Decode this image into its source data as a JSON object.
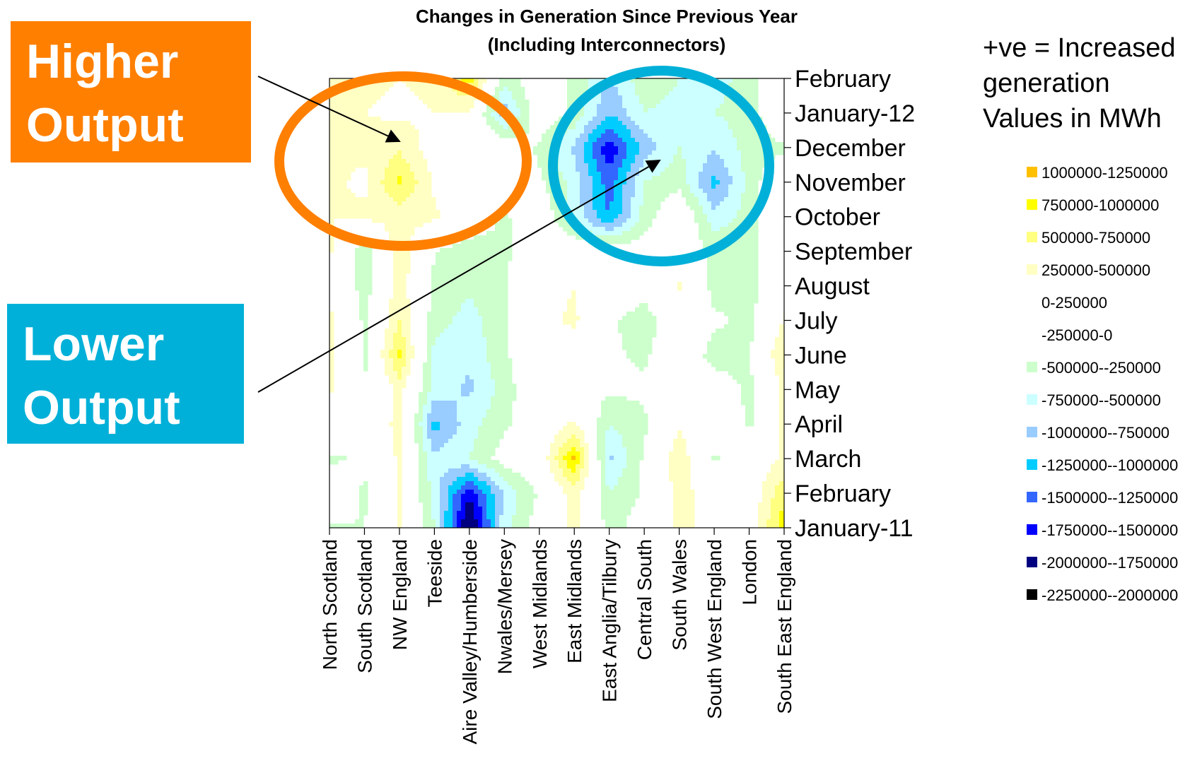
{
  "chart_data": {
    "type": "contour",
    "title": "Changes in Generation Since Previous Year",
    "subtitle": "(Including Interconnectors)",
    "x_categories": [
      "North Scotland",
      "South Scotland",
      "NW England",
      "Teeside",
      "Aire Valley/Humberside",
      "Nwales/Mersey",
      "West Midlands",
      "East Midlands",
      "East Anglia/Tilbury",
      "Central South",
      "South Wales",
      "South West England",
      "London",
      "South East England"
    ],
    "y_categories": [
      "January-11",
      "February",
      "March",
      "April",
      "May",
      "June",
      "July",
      "August",
      "September",
      "October",
      "November",
      "December",
      "January-12",
      "February"
    ],
    "grid": false,
    "legend_position": "right",
    "note_lines": [
      "+ve = Increased",
      "generation",
      "Values in MWh"
    ],
    "legend": [
      {
        "label": "1000000-1250000",
        "color": "#ffc000"
      },
      {
        "label": "750000-1000000",
        "color": "#ffff00"
      },
      {
        "label": "500000-750000",
        "color": "#ffff80"
      },
      {
        "label": "250000-500000",
        "color": "#ffffc4"
      },
      {
        "label": "0-250000",
        "color": "#ffffff"
      },
      {
        "label": "-250000-0",
        "color": "#ffffff"
      },
      {
        "label": "-500000--250000",
        "color": "#ccffcc"
      },
      {
        "label": "-750000--500000",
        "color": "#ccffff"
      },
      {
        "label": "-1000000--750000",
        "color": "#99ccff"
      },
      {
        "label": "-1250000--1000000",
        "color": "#00ccff"
      },
      {
        "label": "-1500000--1250000",
        "color": "#3366ff"
      },
      {
        "label": "-1750000--1500000",
        "color": "#0000ff"
      },
      {
        "label": "-2000000--1750000",
        "color": "#000080"
      },
      {
        "label": "-2250000--2000000",
        "color": "#000000"
      }
    ],
    "bands": [
      1000000,
      750000,
      500000,
      250000,
      0,
      -250000,
      -500000,
      -750000,
      -1000000,
      -1250000,
      -1500000,
      -1750000,
      -2000000,
      -2250000
    ],
    "values": [
      [
        -300000,
        -250000,
        300000,
        -500000,
        -2100000,
        -600000,
        -100000,
        350000,
        -350000,
        -100000,
        350000,
        100000,
        100000,
        900000
      ],
      [
        100000,
        -300000,
        250000,
        -600000,
        -1700000,
        -700000,
        -200000,
        400000,
        -500000,
        -200000,
        350000,
        100000,
        0,
        700000
      ],
      [
        -300000,
        -200000,
        300000,
        -700000,
        -500000,
        -100000,
        0,
        1050000,
        -800000,
        -200000,
        450000,
        -300000,
        0,
        300000
      ],
      [
        100000,
        -200000,
        400000,
        -1100000,
        -600000,
        -300000,
        0,
        300000,
        -500000,
        -300000,
        200000,
        100000,
        -300000,
        350000
      ],
      [
        300000,
        -250000,
        350000,
        -600000,
        -800000,
        -400000,
        100000,
        -200000,
        -200000,
        -200000,
        100000,
        -100000,
        -300000,
        300000
      ],
      [
        350000,
        -300000,
        800000,
        -600000,
        -700000,
        -300000,
        100000,
        100000,
        -200000,
        -300000,
        0,
        -350000,
        -300000,
        550000
      ],
      [
        300000,
        -300000,
        500000,
        -400000,
        -600000,
        -300000,
        150000,
        300000,
        -200000,
        -400000,
        0,
        -200000,
        -300000,
        250000
      ],
      [
        250000,
        -400000,
        400000,
        -300000,
        -450000,
        -300000,
        100000,
        250000,
        100000,
        -100000,
        300000,
        -350000,
        -400000,
        150000
      ],
      [
        300000,
        -500000,
        450000,
        -250000,
        -400000,
        -300000,
        0,
        0,
        0,
        -100000,
        0,
        -300000,
        -400000,
        100000
      ],
      [
        250000,
        300000,
        350000,
        300000,
        0,
        -300000,
        0,
        -600000,
        -1250000,
        -400000,
        100000,
        -650000,
        -400000,
        100000
      ],
      [
        300000,
        200000,
        800000,
        200000,
        0,
        100000,
        -200000,
        -600000,
        -1400000,
        -500000,
        -350000,
        -1100000,
        -400000,
        100000
      ],
      [
        300000,
        300000,
        450000,
        100000,
        100000,
        0,
        -300000,
        -800000,
        -1700000,
        -900000,
        -500000,
        -700000,
        -400000,
        -300000
      ],
      [
        300000,
        250000,
        200000,
        250000,
        200000,
        -900000,
        0,
        -300000,
        -1000000,
        -500000,
        -600000,
        -500000,
        -400000,
        100000
      ],
      [
        350000,
        300000,
        250000,
        300000,
        900000,
        -400000,
        0,
        -300000,
        -800000,
        -300000,
        -500000,
        -600000,
        -400000,
        100000
      ]
    ]
  },
  "callouts": {
    "higher": {
      "line1": "Higher",
      "line2": "Output",
      "color": "#ff7f00"
    },
    "lower": {
      "line1": "Lower",
      "line2": "Output",
      "color": "#00b0d8"
    }
  }
}
